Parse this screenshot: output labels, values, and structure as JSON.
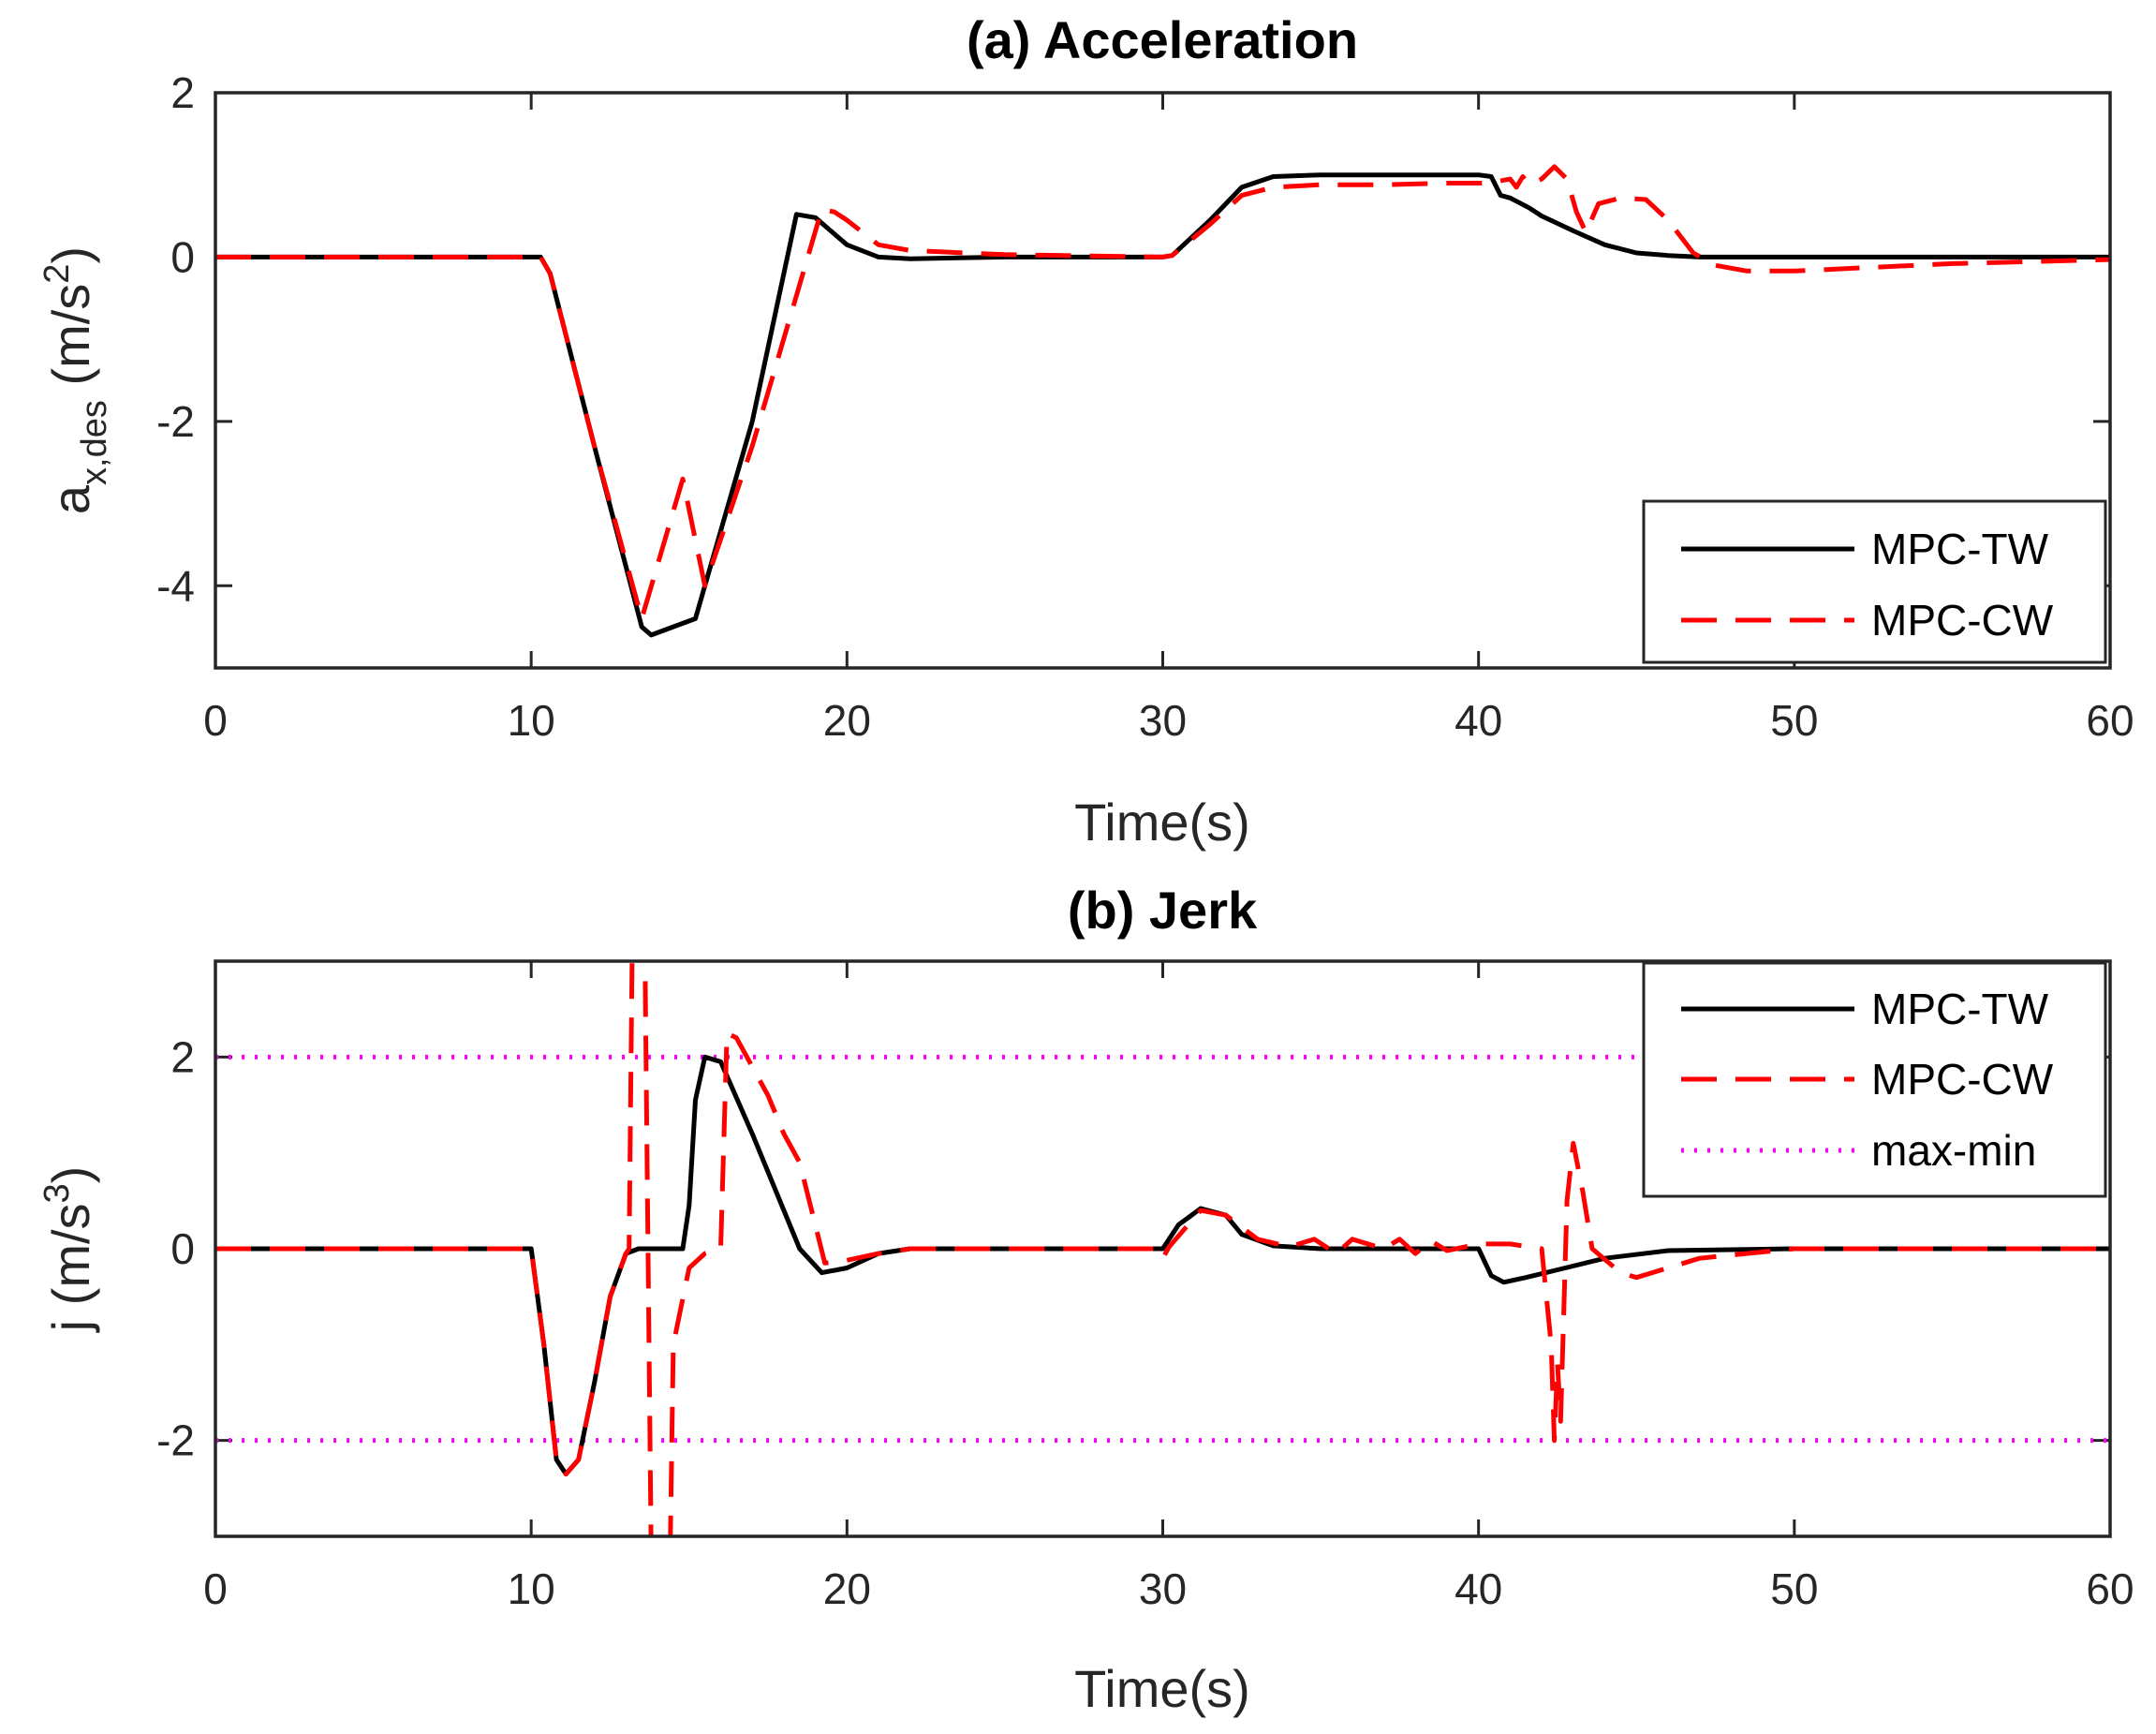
{
  "colors": {
    "tw": "#000000",
    "cw": "#ff0000",
    "limit": "#ff00ff"
  },
  "chart_data": [
    {
      "type": "line",
      "title": "(a) Acceleration",
      "xlabel": "Time(s)",
      "ylabel": {
        "main": "a",
        "sub": "x,des",
        "unit_open": " (m/s",
        "sup": "2",
        "unit_close": ")"
      },
      "xlim": [
        0,
        60
      ],
      "ylim": [
        -5,
        2
      ],
      "xticks": [
        0,
        10,
        20,
        30,
        40,
        50,
        60
      ],
      "yticks": [
        2,
        0,
        -2,
        -4
      ],
      "legend": {
        "placement": "bottom-right",
        "entries": [
          "MPC-TW",
          "MPC-CW"
        ]
      },
      "series": [
        {
          "name": "MPC-TW",
          "style": "solid",
          "x": [
            0,
            10,
            10.3,
            10.6,
            12,
            13.5,
            13.8,
            15.2,
            17,
            18.4,
            19,
            20,
            21,
            22,
            25,
            30,
            30.3,
            31.5,
            32.5,
            33.5,
            35,
            37,
            39,
            40,
            40.4,
            40.7,
            41,
            41.6,
            42,
            43,
            44,
            45,
            46,
            47,
            50,
            55,
            60
          ],
          "y": [
            0,
            0,
            0,
            -0.2,
            -2.3,
            -4.5,
            -4.6,
            -4.4,
            -2.0,
            0.52,
            0.48,
            0.15,
            0.0,
            -0.02,
            0.0,
            0.0,
            0.02,
            0.45,
            0.85,
            0.98,
            1.0,
            1.0,
            1.0,
            1.0,
            0.98,
            0.75,
            0.72,
            0.6,
            0.5,
            0.32,
            0.15,
            0.05,
            0.02,
            0.0,
            0.0,
            0.0,
            0.0
          ]
        },
        {
          "name": "MPC-CW",
          "style": "dashed",
          "x": [
            0,
            10,
            10.3,
            10.6,
            12,
            13.5,
            14.8,
            15.5,
            17,
            19.2,
            19.6,
            20,
            21,
            22,
            25,
            30,
            30.3,
            31.5,
            32.5,
            33.5,
            35,
            37,
            39,
            40.3,
            41,
            41.2,
            41.4,
            41.6,
            42,
            42.4,
            42.8,
            43.1,
            43.4,
            43.8,
            44.5,
            45.3,
            46,
            46.8,
            47.5,
            48.5,
            50,
            55,
            60
          ],
          "y": [
            0,
            0,
            0,
            -0.2,
            -2.3,
            -4.4,
            -2.7,
            -4.0,
            -2.3,
            0.58,
            0.55,
            0.45,
            0.15,
            0.08,
            0.03,
            0.0,
            0.02,
            0.4,
            0.75,
            0.85,
            0.88,
            0.88,
            0.9,
            0.9,
            0.95,
            0.85,
            0.98,
            0.88,
            0.95,
            1.1,
            0.95,
            0.55,
            0.3,
            0.65,
            0.72,
            0.7,
            0.45,
            0.05,
            -0.1,
            -0.17,
            -0.17,
            -0.08,
            -0.03
          ]
        }
      ]
    },
    {
      "type": "line",
      "title": "(b) Jerk",
      "xlabel": "Time(s)",
      "ylabel": {
        "main": "j (m/s",
        "sup": "3",
        "unit_close": ")"
      },
      "xlim": [
        0,
        60
      ],
      "ylim": [
        -3,
        3
      ],
      "xticks": [
        0,
        10,
        20,
        30,
        40,
        50,
        60
      ],
      "yticks": [
        2,
        0,
        -2
      ],
      "legend": {
        "placement": "top-right",
        "entries": [
          "MPC-TW",
          "MPC-CW",
          "max-min"
        ]
      },
      "series": [
        {
          "name": "MPC-TW",
          "style": "solid",
          "x": [
            0,
            10,
            10.4,
            10.8,
            11.1,
            11.5,
            12,
            12.5,
            13,
            13.4,
            14.8,
            15.0,
            15.2,
            15.5,
            16,
            17,
            18.5,
            19.2,
            20,
            21,
            22,
            25,
            30,
            30.5,
            31.2,
            32,
            32.5,
            33.5,
            35,
            40,
            40.4,
            40.8,
            41.5,
            42.5,
            44,
            46,
            50,
            55,
            60
          ],
          "y": [
            0,
            0,
            -1.0,
            -2.2,
            -2.35,
            -2.2,
            -1.4,
            -0.5,
            -0.05,
            0.0,
            0.0,
            0.45,
            1.55,
            2.0,
            1.95,
            1.2,
            0.0,
            -0.25,
            -0.2,
            -0.05,
            0.0,
            0.0,
            0.0,
            0.25,
            0.42,
            0.35,
            0.15,
            0.03,
            0.0,
            0.0,
            -0.28,
            -0.35,
            -0.3,
            -0.22,
            -0.1,
            -0.02,
            0.0,
            0.0,
            0.0
          ]
        },
        {
          "name": "MPC-CW",
          "style": "dashed",
          "x": [
            0,
            10,
            10.4,
            10.8,
            11.1,
            11.5,
            12,
            12.5,
            13,
            13.1,
            13.2,
            13.6,
            13.8,
            13.9,
            14.4,
            14.5,
            15.0,
            15.5,
            16.0,
            16.2,
            16.5,
            17.5,
            18,
            18.5,
            19.3,
            20,
            21,
            22,
            25,
            29.8,
            30,
            30.2,
            31.2,
            32,
            33,
            34,
            34.8,
            35.5,
            36,
            37,
            37.5,
            38,
            38.5,
            39,
            40,
            41,
            42,
            42.3,
            42.4,
            42.5,
            42.6,
            42.8,
            43.0,
            43.3,
            43.6,
            44.5,
            45,
            47,
            50,
            55,
            60
          ],
          "y": [
            0,
            0,
            -1.0,
            -2.2,
            -2.35,
            -2.2,
            -1.4,
            -0.5,
            -0.05,
            0.0,
            3.2,
            3.2,
            -3.2,
            -3.2,
            -3.2,
            -1.0,
            -0.2,
            -0.05,
            0.0,
            2.25,
            2.2,
            1.6,
            1.2,
            0.9,
            -0.15,
            -0.12,
            -0.05,
            0.0,
            0.0,
            0.0,
            -0.1,
            0.02,
            0.4,
            0.35,
            0.1,
            0.02,
            0.1,
            -0.05,
            0.1,
            0.0,
            0.1,
            -0.05,
            0.08,
            -0.02,
            0.05,
            0.05,
            0.0,
            -1.0,
            -2.0,
            -1.2,
            -1.8,
            0.5,
            1.1,
            0.6,
            0.0,
            -0.25,
            -0.3,
            -0.1,
            0.0,
            0.0,
            0.0
          ]
        },
        {
          "name": "max-min",
          "style": "dotted",
          "levels": [
            2,
            -2
          ]
        }
      ]
    }
  ]
}
